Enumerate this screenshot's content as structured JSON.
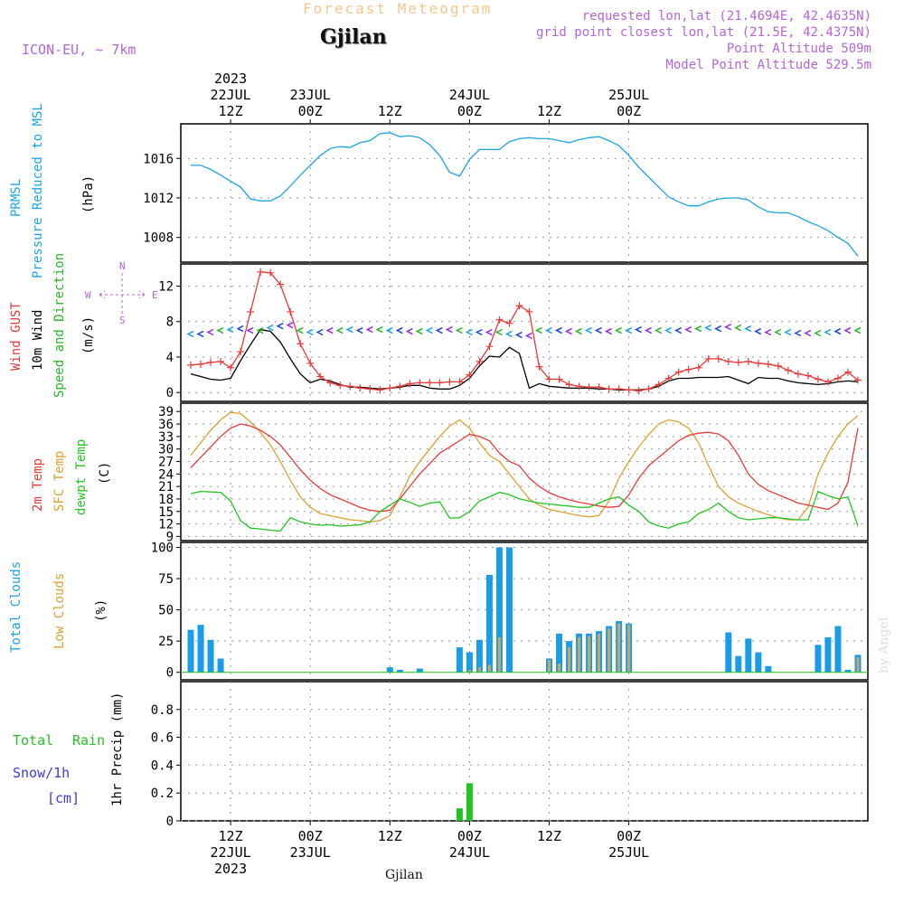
{
  "header": {
    "top_title": "Forecast Meteogram",
    "location_title": "Gjilan",
    "model": "ICON-EU, ~ 7km",
    "requested": "requested lon,lat (21.4694E, 42.4635N)",
    "grid_point": "grid point closest lon,lat (21.5E, 42.4375N)",
    "point_altitude": "Point Altitude 509m",
    "model_altitude": "Model Point Altitude 529.5m"
  },
  "footer": {
    "location": "Gjilan",
    "watermark": "by Angel"
  },
  "colors": {
    "pressure": "#1aa3e8",
    "gust": "#e83a3a",
    "wind": "#000000",
    "direction": "#2ab52a",
    "temp2m": "#e83a3a",
    "sfc": "#e0a030",
    "dewpt": "#22c422",
    "total_clouds": "#1a9ce8",
    "low_clouds": "#c8a860",
    "rain": "#22c422",
    "snow": "#3c3cd8",
    "annot": "#b565d8"
  },
  "chart_data": [
    {
      "type": "line",
      "id": "pressure",
      "ylabels": [
        "PRMSL",
        "Pressure Reduced to MSL",
        "(hPa)"
      ],
      "ylim": [
        1005.5,
        1019.5
      ],
      "yticks": [
        1008,
        1012,
        1016
      ],
      "x_hours": [
        0,
        3,
        6,
        9,
        12,
        15,
        18,
        21,
        24,
        27,
        30,
        33,
        36,
        39,
        42,
        45,
        48,
        51,
        54,
        57,
        60,
        63,
        66,
        69,
        72,
        75,
        78,
        81,
        84,
        87,
        90,
        93,
        96,
        99,
        102,
        105,
        108,
        111,
        114,
        117,
        120,
        123,
        126,
        129,
        132,
        135,
        138,
        141,
        144,
        147,
        150,
        153,
        156,
        159,
        162,
        165,
        168,
        171,
        174,
        177,
        180,
        183,
        186,
        189,
        192,
        195,
        198,
        201
      ],
      "values": [
        1015.3,
        1015.3,
        1014.9,
        1014.3,
        1013.7,
        1013.1,
        1011.9,
        1011.7,
        1011.7,
        1012.2,
        1013.2,
        1014.3,
        1015.3,
        1016.3,
        1017.0,
        1017.2,
        1017.1,
        1017.6,
        1017.8,
        1018.5,
        1018.6,
        1018.2,
        1018.3,
        1018.1,
        1017.4,
        1016.3,
        1014.6,
        1014.2,
        1015.9,
        1016.9,
        1016.9,
        1016.9,
        1017.7,
        1018.0,
        1018.1,
        1018.0,
        1018.0,
        1017.8,
        1017.6,
        1017.9,
        1018.1,
        1018.2,
        1017.8,
        1017.3,
        1016.3,
        1015.1,
        1014.1,
        1013.1,
        1012.1,
        1011.6,
        1011.2,
        1011.2,
        1011.6,
        1011.9,
        1012.0,
        1012.0,
        1011.8,
        1011.1,
        1010.6,
        1010.5,
        1010.5,
        1010.1,
        1009.6,
        1009.2,
        1008.7,
        1008.0,
        1007.4,
        1006.1
      ]
    },
    {
      "type": "line",
      "id": "wind",
      "ylabels": [
        "Wind GUST",
        "10m Wind",
        "Speed and Direction",
        "(m/s)"
      ],
      "compass": [
        "W",
        "E",
        "N",
        "S"
      ],
      "ylim": [
        -1,
        14.5
      ],
      "yticks": [
        0,
        4,
        8,
        12
      ],
      "x_hours": [
        0,
        3,
        6,
        9,
        12,
        15,
        18,
        21,
        24,
        27,
        30,
        33,
        36,
        39,
        42,
        45,
        48,
        51,
        54,
        57,
        60,
        63,
        66,
        69,
        72,
        75,
        78,
        81,
        84,
        87,
        90,
        93,
        96,
        99,
        102,
        105,
        108,
        111,
        114,
        117,
        120,
        123,
        126,
        129,
        132,
        135,
        138,
        141,
        144,
        147,
        150,
        153,
        156,
        159,
        162,
        165,
        168,
        171,
        174,
        177,
        180,
        183,
        186,
        189,
        192,
        195,
        198,
        201
      ],
      "series": [
        {
          "name": "Wind GUST",
          "values": [
            3.1,
            3.2,
            3.4,
            3.5,
            2.8,
            4.6,
            9.1,
            13.6,
            13.5,
            12.2,
            9.1,
            5.5,
            3.3,
            1.8,
            1.1,
            0.8,
            0.7,
            0.5,
            0.4,
            0.3,
            0.5,
            0.7,
            1.0,
            1.1,
            1.1,
            1.1,
            1.2,
            1.2,
            2.0,
            3.5,
            5.2,
            8.2,
            7.8,
            9.8,
            9.1,
            2.9,
            1.5,
            1.5,
            0.9,
            0.7,
            0.6,
            0.6,
            0.4,
            0.4,
            0.3,
            0.2,
            0.4,
            0.9,
            1.6,
            2.3,
            2.6,
            2.8,
            3.8,
            3.8,
            3.5,
            3.4,
            3.5,
            3.3,
            3.2,
            3.0,
            2.5,
            2.1,
            1.9,
            1.5,
            1.2,
            1.6,
            2.3,
            1.4
          ]
        },
        {
          "name": "10m Wind",
          "values": [
            2.1,
            1.8,
            1.5,
            1.4,
            1.6,
            3.6,
            5.4,
            7.1,
            6.9,
            5.7,
            3.8,
            2.1,
            1.1,
            1.5,
            1.3,
            0.9,
            0.6,
            0.6,
            0.5,
            0.4,
            0.5,
            0.6,
            0.8,
            0.8,
            0.5,
            0.4,
            0.4,
            0.8,
            1.6,
            3.0,
            4.1,
            4.0,
            5.1,
            4.4,
            0.5,
            1.0,
            0.7,
            0.6,
            0.5,
            0.5,
            0.5,
            0.4,
            0.4,
            0.3,
            0.3,
            0.3,
            0.4,
            0.7,
            1.3,
            1.6,
            1.6,
            1.7,
            1.7,
            1.7,
            1.8,
            1.4,
            1.0,
            1.7,
            1.6,
            1.6,
            1.3,
            1.1,
            1.0,
            0.9,
            1.0,
            1.2,
            1.3,
            1.2
          ]
        },
        {
          "name": "Direction arrows",
          "values": [
            6.6,
            6.6,
            6.8,
            7.0,
            7.1,
            7.2,
            7.0,
            7.0,
            7.3,
            7.5,
            7.6,
            7.0,
            6.8,
            6.8,
            7.0,
            7.0,
            7.1,
            7.0,
            7.1,
            7.1,
            7.0,
            7.0,
            6.9,
            6.9,
            7.0,
            7.0,
            7.1,
            7.0,
            6.8,
            6.8,
            6.8,
            6.8,
            6.6,
            6.5,
            6.4,
            7.0,
            7.0,
            7.0,
            6.9,
            6.9,
            7.0,
            7.0,
            6.9,
            7.0,
            7.0,
            7.1,
            7.0,
            7.0,
            7.0,
            7.0,
            7.1,
            7.2,
            7.3,
            7.2,
            7.4,
            7.3,
            7.2,
            6.9,
            6.8,
            6.8,
            6.8,
            6.7,
            6.7,
            6.7,
            6.8,
            6.9,
            7.0,
            7.0
          ]
        }
      ]
    },
    {
      "type": "line",
      "id": "temperature",
      "ylabels": [
        "2m Temp",
        "SFC Temp",
        "dewpt Temp",
        "(C)"
      ],
      "ylim": [
        8,
        41
      ],
      "yticks": [
        9,
        12,
        15,
        18,
        21,
        24,
        27,
        30,
        33,
        36,
        39
      ],
      "x_hours": [
        0,
        3,
        6,
        9,
        12,
        15,
        18,
        21,
        24,
        27,
        30,
        33,
        36,
        39,
        42,
        45,
        48,
        51,
        54,
        57,
        60,
        63,
        66,
        69,
        72,
        75,
        78,
        81,
        84,
        87,
        90,
        93,
        96,
        99,
        102,
        105,
        108,
        111,
        114,
        117,
        120,
        123,
        126,
        129,
        132,
        135,
        138,
        141,
        144,
        147,
        150,
        153,
        156,
        159,
        162,
        165,
        168,
        171,
        174,
        177,
        180,
        183,
        186,
        189,
        192,
        195,
        198,
        201
      ],
      "series": [
        {
          "name": "2m Temp",
          "values": [
            25.5,
            28.0,
            30.5,
            33.0,
            35.0,
            36.0,
            35.5,
            34.5,
            33.0,
            31.0,
            28.0,
            25.0,
            22.5,
            20.5,
            19.0,
            18.0,
            17.0,
            16.0,
            15.3,
            15.0,
            15.3,
            18.0,
            21.0,
            24.0,
            26.5,
            29.0,
            30.5,
            32.0,
            33.5,
            33.0,
            32.0,
            29.0,
            27.0,
            26.0,
            23.0,
            21.0,
            19.5,
            18.5,
            17.8,
            17.2,
            16.8,
            16.3,
            16.0,
            16.2,
            19.0,
            23.0,
            26.0,
            28.0,
            30.0,
            32.0,
            33.3,
            33.8,
            34.0,
            33.6,
            32.0,
            28.5,
            24.0,
            21.5,
            20.0,
            19.0,
            18.0,
            17.0,
            16.5,
            16.0,
            15.5,
            17.0,
            22.0,
            35.0
          ]
        },
        {
          "name": "SFC Temp",
          "values": [
            28.5,
            31.5,
            34.5,
            37.0,
            38.8,
            38.5,
            36.5,
            34.0,
            31.0,
            27.0,
            22.5,
            18.5,
            16.0,
            14.5,
            14.0,
            13.5,
            13.0,
            12.8,
            12.5,
            12.8,
            14.0,
            18.5,
            23.5,
            27.0,
            30.0,
            33.0,
            35.5,
            37.0,
            35.0,
            31.5,
            28.5,
            27.0,
            24.0,
            21.0,
            18.0,
            16.5,
            15.5,
            15.0,
            14.5,
            14.0,
            13.7,
            14.0,
            17.5,
            23.0,
            27.0,
            30.5,
            33.5,
            36.0,
            37.0,
            36.5,
            35.0,
            31.5,
            26.0,
            21.0,
            18.5,
            17.0,
            16.0,
            15.0,
            14.2,
            13.5,
            13.0,
            13.0,
            16.0,
            24.0,
            29.0,
            33.0,
            36.0,
            38.0
          ]
        },
        {
          "name": "dewpt Temp",
          "values": [
            19.3,
            19.8,
            19.7,
            19.6,
            17.5,
            12.8,
            11.0,
            10.8,
            10.5,
            10.3,
            13.5,
            12.5,
            12.0,
            11.7,
            11.8,
            11.5,
            11.6,
            11.8,
            12.5,
            15.0,
            16.5,
            18.0,
            17.2,
            16.2,
            17.0,
            17.3,
            13.4,
            13.5,
            15.0,
            17.5,
            18.5,
            19.6,
            19.0,
            18.0,
            17.5,
            17.0,
            16.8,
            16.5,
            16.3,
            16.0,
            16.0,
            17.0,
            18.0,
            18.5,
            16.5,
            15.0,
            12.5,
            11.5,
            11.0,
            12.0,
            12.5,
            14.5,
            15.5,
            17.0,
            15.0,
            13.5,
            13.0,
            13.2,
            13.5,
            13.5,
            13.2,
            13.0,
            13.0,
            19.8,
            18.8,
            18.0,
            18.5,
            11.5
          ]
        }
      ]
    },
    {
      "type": "bar",
      "id": "clouds",
      "ylabels": [
        "Total Clouds",
        "Low Clouds",
        "(%)"
      ],
      "ylim": [
        -6,
        104
      ],
      "yticks": [
        0,
        25,
        50,
        75,
        100
      ],
      "x_hours": [
        0,
        3,
        6,
        9,
        12,
        15,
        18,
        21,
        24,
        27,
        30,
        33,
        36,
        39,
        42,
        45,
        48,
        51,
        54,
        57,
        60,
        63,
        66,
        69,
        72,
        75,
        78,
        81,
        84,
        87,
        90,
        93,
        96,
        99,
        102,
        105,
        108,
        111,
        114,
        117,
        120,
        123,
        126,
        129,
        132,
        135,
        138,
        141,
        144,
        147,
        150,
        153,
        156,
        159,
        162,
        165,
        168,
        171,
        174,
        177,
        180,
        183,
        186,
        189,
        192,
        195,
        198,
        201
      ],
      "series": [
        {
          "name": "Total Clouds",
          "values": [
            34,
            38,
            26,
            11,
            0,
            0,
            0,
            0,
            0,
            0,
            0,
            0,
            0,
            0,
            0,
            0,
            0,
            0,
            0,
            0,
            4,
            2,
            0,
            3,
            0,
            0,
            0,
            20,
            16,
            26,
            78,
            100,
            100,
            0,
            0,
            0,
            11,
            31,
            25,
            31,
            31,
            33,
            37,
            41,
            39,
            0,
            0,
            0,
            0,
            0,
            0,
            0,
            0,
            0,
            32,
            13,
            27,
            16,
            5,
            0,
            0,
            0,
            0,
            22,
            28,
            37,
            2,
            14
          ]
        },
        {
          "name": "Low Clouds",
          "values": [
            0,
            0,
            0,
            0,
            0,
            0,
            0,
            0,
            0,
            0,
            0,
            0,
            0,
            0,
            0,
            0,
            0,
            0,
            0,
            0,
            0,
            0,
            0,
            0,
            0,
            0,
            0,
            0,
            2,
            4,
            6,
            28,
            0,
            0,
            0,
            0,
            10,
            7,
            20,
            28,
            29,
            31,
            35,
            39,
            38,
            0,
            0,
            0,
            0,
            0,
            0,
            0,
            0,
            0,
            0,
            0,
            0,
            0,
            0,
            0,
            0,
            0,
            0,
            0,
            0,
            0,
            0,
            12
          ]
        }
      ]
    },
    {
      "type": "bar",
      "id": "precip",
      "left_labels": [
        "Total",
        "Rain",
        "Snow/1h",
        "[cm]"
      ],
      "ylabel": "1hr Precip (mm)",
      "ylim": [
        0,
        1.0
      ],
      "yticks": [
        "0",
        "0.2",
        "0.4",
        "0.6",
        "0.8"
      ],
      "x_hours": [
        81,
        84
      ],
      "series": [
        {
          "name": "Total Rain",
          "values": [
            0.09,
            0.27
          ]
        }
      ]
    }
  ],
  "time_axis": {
    "top_year": "2023",
    "ticks": [
      {
        "hour": 12,
        "time": "12Z",
        "date": "22JUL"
      },
      {
        "hour": 36,
        "time": "00Z",
        "date": "23JUL"
      },
      {
        "hour": 60,
        "time": "12Z",
        "date": ""
      },
      {
        "hour": 84,
        "time": "00Z",
        "date": "24JUL"
      },
      {
        "hour": 108,
        "time": "12Z",
        "date": ""
      },
      {
        "hour": 132,
        "time": "00Z",
        "date": "25JUL"
      }
    ],
    "bottom_year": "2023"
  }
}
